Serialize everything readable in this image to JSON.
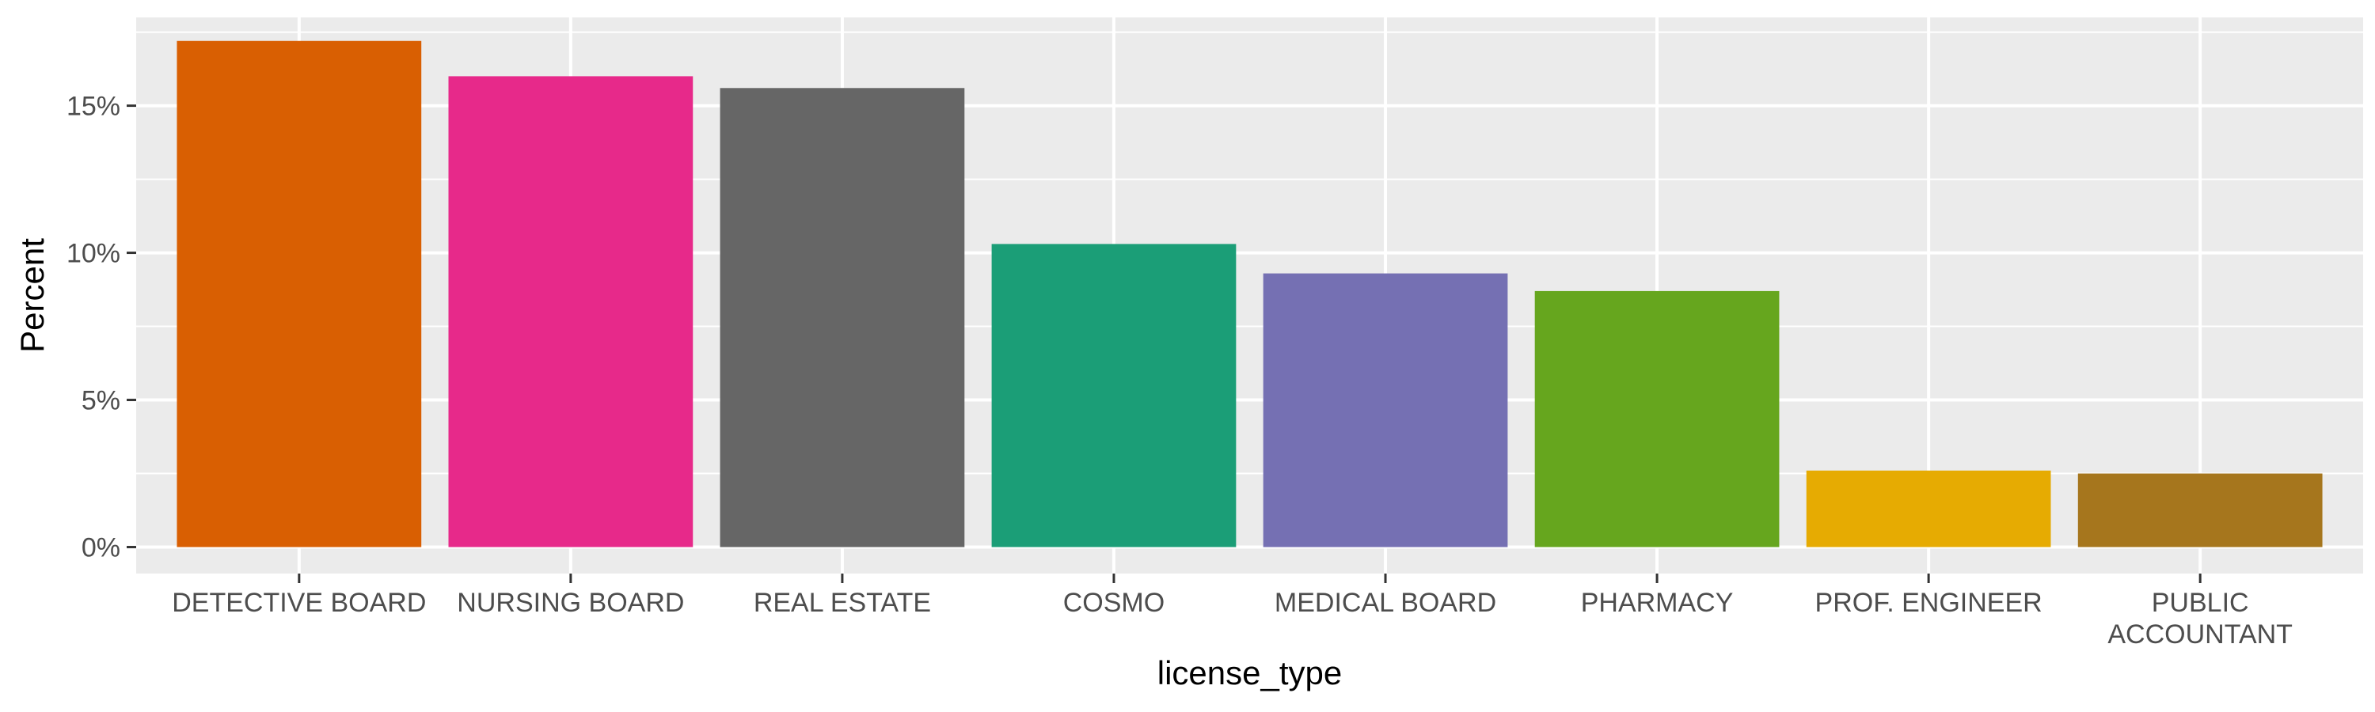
{
  "chart_data": {
    "type": "bar",
    "title": "",
    "xlabel": "license_type",
    "ylabel": "Percent",
    "categories": [
      "DETECTIVE BOARD",
      "NURSING BOARD",
      "REAL ESTATE",
      "COSMO",
      "MEDICAL BOARD",
      "PHARMACY",
      "PROF. ENGINEER",
      "PUBLIC ACCOUNTANT"
    ],
    "category_label_lines": [
      [
        "DETECTIVE BOARD"
      ],
      [
        "NURSING BOARD"
      ],
      [
        "REAL ESTATE"
      ],
      [
        "COSMO"
      ],
      [
        "MEDICAL BOARD"
      ],
      [
        "PHARMACY"
      ],
      [
        "PROF. ENGINEER"
      ],
      [
        "PUBLIC",
        "ACCOUNTANT"
      ]
    ],
    "values": [
      17.2,
      16.0,
      15.6,
      10.3,
      9.3,
      8.7,
      2.6,
      2.5
    ],
    "colors": [
      "#d95f02",
      "#e7298a",
      "#666666",
      "#1b9e77",
      "#7570b3",
      "#66a61e",
      "#e6ab02",
      "#a6761d"
    ],
    "ylim": [
      -0.9,
      18.0
    ],
    "yticks": [
      0,
      5,
      10,
      15
    ],
    "ytick_labels": [
      "0%",
      "5%",
      "10%",
      "15%"
    ],
    "grid": true,
    "legend": "none"
  }
}
